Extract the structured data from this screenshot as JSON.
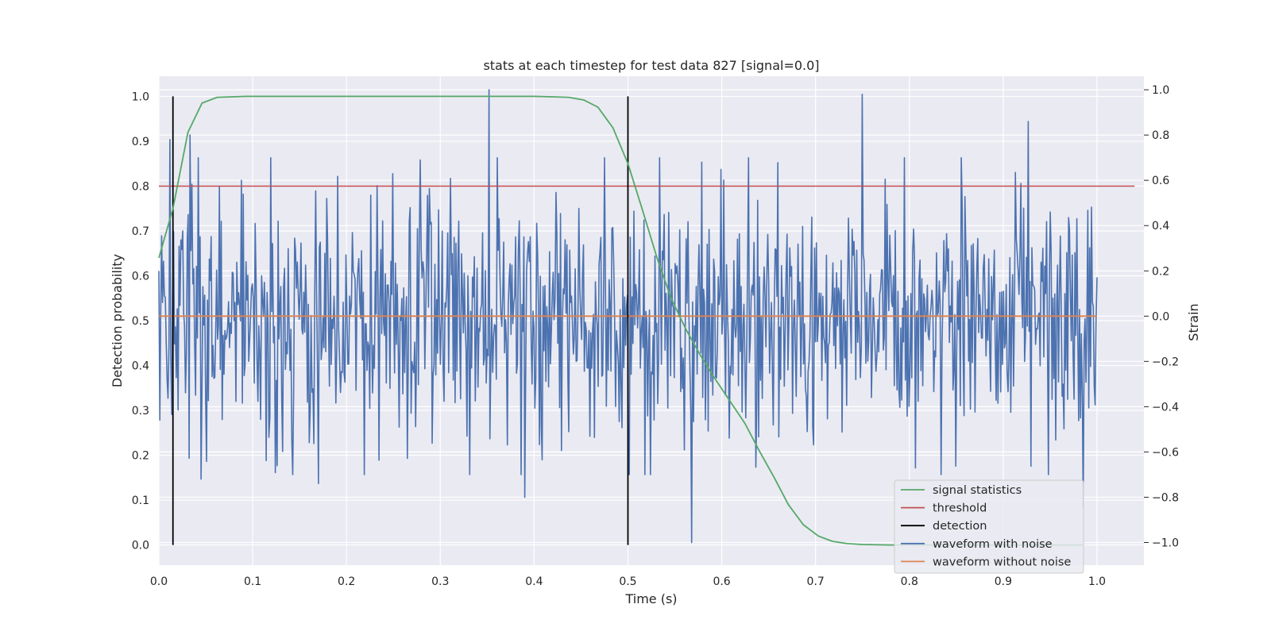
{
  "chart_data": {
    "type": "line",
    "title": "stats at each timestep for test data 827 [signal=0.0]",
    "xlabel": "Time (s)",
    "ylabel": "Detection probability",
    "y2label": "Strain",
    "xlim": [
      0.0,
      1.05
    ],
    "ylim": [
      -0.045,
      1.045
    ],
    "y2lim": [
      -1.1,
      1.06
    ],
    "xticks": [
      "0.0",
      "0.1",
      "0.2",
      "0.3",
      "0.4",
      "0.5",
      "0.6",
      "0.7",
      "0.8",
      "0.9",
      "1.0"
    ],
    "yticks": [
      "0.0",
      "0.1",
      "0.2",
      "0.3",
      "0.4",
      "0.5",
      "0.6",
      "0.7",
      "0.8",
      "0.9",
      "1.0"
    ],
    "y2ticks": [
      "−1.0",
      "−0.8",
      "−0.6",
      "−0.4",
      "−0.2",
      "0.0",
      "0.2",
      "0.4",
      "0.6",
      "0.8",
      "1.0"
    ],
    "grid": true,
    "legend_position": "lower-right",
    "series": [
      {
        "name": "signal statistics",
        "axis": "left",
        "color": "#55a868",
        "x": [
          0.0,
          0.015,
          0.031,
          0.046,
          0.062,
          0.078,
          0.093,
          0.109,
          0.125,
          0.14,
          0.2,
          0.3,
          0.4,
          0.42,
          0.437,
          0.453,
          0.468,
          0.484,
          0.5,
          0.515,
          0.531,
          0.546,
          0.562,
          0.578,
          0.593,
          0.609,
          0.625,
          0.64,
          0.656,
          0.671,
          0.687,
          0.703,
          0.718,
          0.734,
          0.75,
          0.78,
          0.8,
          0.9,
          0.985
        ],
        "y": [
          0.64,
          0.75,
          0.92,
          0.985,
          0.998,
          0.999,
          1.0,
          1.0,
          1.0,
          1.0,
          1.0,
          1.0,
          1.0,
          0.999,
          0.998,
          0.992,
          0.976,
          0.93,
          0.85,
          0.75,
          0.64,
          0.55,
          0.48,
          0.42,
          0.37,
          0.32,
          0.27,
          0.21,
          0.15,
          0.09,
          0.045,
          0.02,
          0.008,
          0.003,
          0.001,
          0.0,
          0.0,
          0.0,
          0.0
        ]
      },
      {
        "name": "threshold",
        "axis": "left",
        "color": "#c44e52",
        "x": [
          0.0,
          1.04
        ],
        "y": [
          0.8,
          0.8
        ]
      },
      {
        "name": "detection",
        "axis": "left",
        "color": "#000000",
        "type": "vertical-lines",
        "x": [
          0.015,
          0.5
        ],
        "y_range": [
          0.0,
          1.0
        ]
      },
      {
        "name": "waveform with noise",
        "axis": "right",
        "color": "#4c72b0",
        "x_range": [
          0.0,
          1.0
        ],
        "points": 1024,
        "noise_std": 0.28,
        "seed": 827,
        "peaks": [
          {
            "x": 0.352,
            "y": 1.0
          },
          {
            "x": 0.75,
            "y": 0.98
          },
          {
            "x": 0.927,
            "y": 0.86
          },
          {
            "x": 0.279,
            "y": 0.69
          },
          {
            "x": 0.088,
            "y": 0.6
          },
          {
            "x": 0.568,
            "y": -1.0
          },
          {
            "x": 0.39,
            "y": -0.8
          },
          {
            "x": 0.045,
            "y": -0.72
          },
          {
            "x": 0.985,
            "y": -0.85
          },
          {
            "x": 0.17,
            "y": -0.74
          },
          {
            "x": 0.012,
            "y": 0.78
          },
          {
            "x": 0.033,
            "y": 0.8
          }
        ]
      },
      {
        "name": "waveform without noise",
        "axis": "right",
        "color": "#dd8452",
        "x": [
          0.0,
          1.0
        ],
        "y": [
          0.0,
          0.0
        ]
      }
    ]
  }
}
